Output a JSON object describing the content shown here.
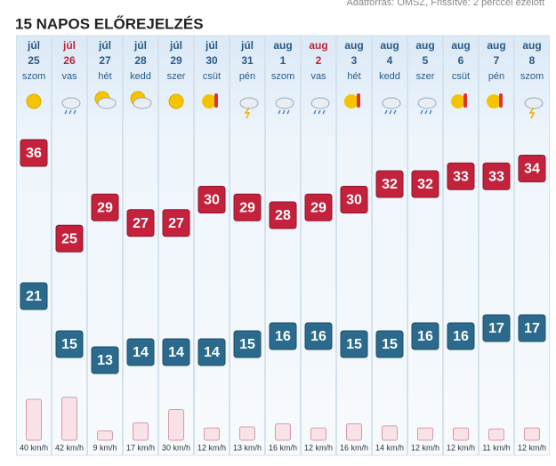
{
  "header": {
    "title": "15 NAPOS ELŐREJELZÉS",
    "source": "Adatforrás: OMSZ, Frissítve: 2 perccel ezelőtt"
  },
  "days": [
    {
      "month": "júl",
      "day": "25",
      "weekday": "szom",
      "max": 36,
      "min": 21,
      "wind": 40,
      "wind_label": "40 km/h"
    },
    {
      "month": "júl",
      "day": "26",
      "weekday": "vas",
      "max": 25,
      "min": 15,
      "wind": 42,
      "wind_label": "42 km/h"
    },
    {
      "month": "júl",
      "day": "27",
      "weekday": "hét",
      "max": 29,
      "min": 13,
      "wind": 9,
      "wind_label": "9 km/h"
    },
    {
      "month": "júl",
      "day": "28",
      "weekday": "kedd",
      "max": 27,
      "min": 14,
      "wind": 17,
      "wind_label": "17 km/h"
    },
    {
      "month": "júl",
      "day": "29",
      "weekday": "szer",
      "max": 27,
      "min": 14,
      "wind": 30,
      "wind_label": "30 km/h"
    },
    {
      "month": "júl",
      "day": "30",
      "weekday": "csüt",
      "max": 30,
      "min": 14,
      "wind": 12,
      "wind_label": "12 km/h"
    },
    {
      "month": "júl",
      "day": "31",
      "weekday": "pén",
      "max": 29,
      "min": 15,
      "wind": 13,
      "wind_label": "13 km/h"
    },
    {
      "month": "aug",
      "day": "1",
      "weekday": "szom",
      "max": 28,
      "min": 16,
      "wind": 16,
      "wind_label": "16 km/h"
    },
    {
      "month": "aug",
      "day": "2",
      "weekday": "vas",
      "max": 29,
      "min": 16,
      "wind": 12,
      "wind_label": "12 km/h"
    },
    {
      "month": "aug",
      "day": "3",
      "weekday": "hét",
      "max": 30,
      "min": 15,
      "wind": 16,
      "wind_label": "16 km/h"
    },
    {
      "month": "aug",
      "day": "4",
      "weekday": "kedd",
      "max": 32,
      "min": 15,
      "wind": 14,
      "wind_label": "14 km/h"
    },
    {
      "month": "aug",
      "day": "5",
      "weekday": "szer",
      "max": 32,
      "min": 16,
      "wind": 12,
      "wind_label": "12 km/h"
    },
    {
      "month": "aug",
      "day": "6",
      "weekday": "csüt",
      "max": 33,
      "min": 16,
      "wind": 12,
      "wind_label": "12 km/h"
    },
    {
      "month": "aug",
      "day": "7",
      "weekday": "pén",
      "max": 33,
      "min": 17,
      "wind": 11,
      "wind_label": "11 km/h"
    },
    {
      "month": "aug",
      "day": "8",
      "weekday": "szom",
      "max": 34,
      "min": 17,
      "wind": 12,
      "wind_label": "12 km/h"
    }
  ]
}
